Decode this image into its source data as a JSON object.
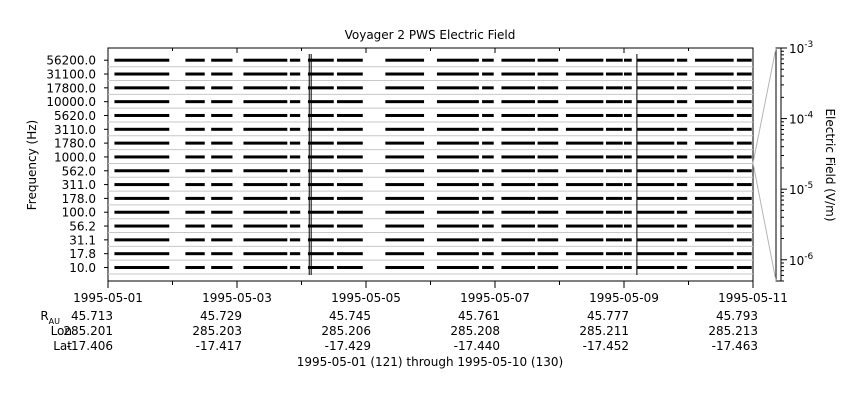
{
  "chart_data": {
    "type": "heatmap",
    "title": "Voyager 2 PWS Electric Field",
    "xlabel": "1995-05-01 (121) through 1995-05-10 (130)",
    "ylabel": "Frequency (Hz)",
    "colorbar_label": "Electric Field (V/m)",
    "colorbar_scale": "log",
    "colorbar_range": [
      5e-07,
      0.001
    ],
    "colorbar_ticks": [
      {
        "value": 0.001,
        "base": "10",
        "exp": "-3"
      },
      {
        "value": 0.0001,
        "base": "10",
        "exp": "-4"
      },
      {
        "value": 1e-05,
        "base": "10",
        "exp": "-5"
      },
      {
        "value": 1e-06,
        "base": "10",
        "exp": "-6"
      }
    ],
    "y_channels": [
      "10.0",
      "17.8",
      "31.1",
      "56.2",
      "100.0",
      "178.0",
      "311.0",
      "562.0",
      "1000.0",
      "1780.0",
      "3110.0",
      "5620.0",
      "10000.0",
      "17800.0",
      "31100.0",
      "56200.0"
    ],
    "x_ticks": [
      {
        "label": "1995-05-01",
        "day": 0
      },
      {
        "label": "1995-05-03",
        "day": 2
      },
      {
        "label": "1995-05-05",
        "day": 4
      },
      {
        "label": "1995-05-07",
        "day": 6
      },
      {
        "label": "1995-05-09",
        "day": 8
      },
      {
        "label": "1995-05-11",
        "day": 10
      }
    ],
    "x_range_days": [
      0,
      10
    ],
    "data_segments_days": [
      [
        0.1,
        0.95
      ],
      [
        1.2,
        1.5
      ],
      [
        1.6,
        1.93
      ],
      [
        2.1,
        2.78
      ],
      [
        2.82,
        2.98
      ],
      [
        3.1,
        3.5
      ],
      [
        3.55,
        3.95
      ],
      [
        4.3,
        4.9
      ],
      [
        5.1,
        5.75
      ],
      [
        5.8,
        5.98
      ],
      [
        6.1,
        6.62
      ],
      [
        6.66,
        6.98
      ],
      [
        7.1,
        7.68
      ],
      [
        7.72,
        7.98
      ],
      [
        8.0,
        8.12
      ],
      [
        8.2,
        8.78
      ],
      [
        8.82,
        8.98
      ],
      [
        9.1,
        9.7
      ],
      [
        9.75,
        9.98
      ]
    ],
    "spikes_days": [
      3.12,
      3.15,
      8.2
    ],
    "ephemeris": {
      "rows": [
        {
          "label": "R",
          "sub": "AU",
          "values": [
            "45.713",
            "45.729",
            "45.745",
            "45.761",
            "45.777",
            "45.793"
          ]
        },
        {
          "label": "Lon",
          "values": [
            "285.201",
            "285.203",
            "285.206",
            "285.208",
            "285.211",
            "285.213"
          ]
        },
        {
          "label": "Lat",
          "values": [
            "-17.406",
            "-17.417",
            "-17.429",
            "-17.440",
            "-17.452",
            "-17.463"
          ]
        }
      ]
    }
  }
}
